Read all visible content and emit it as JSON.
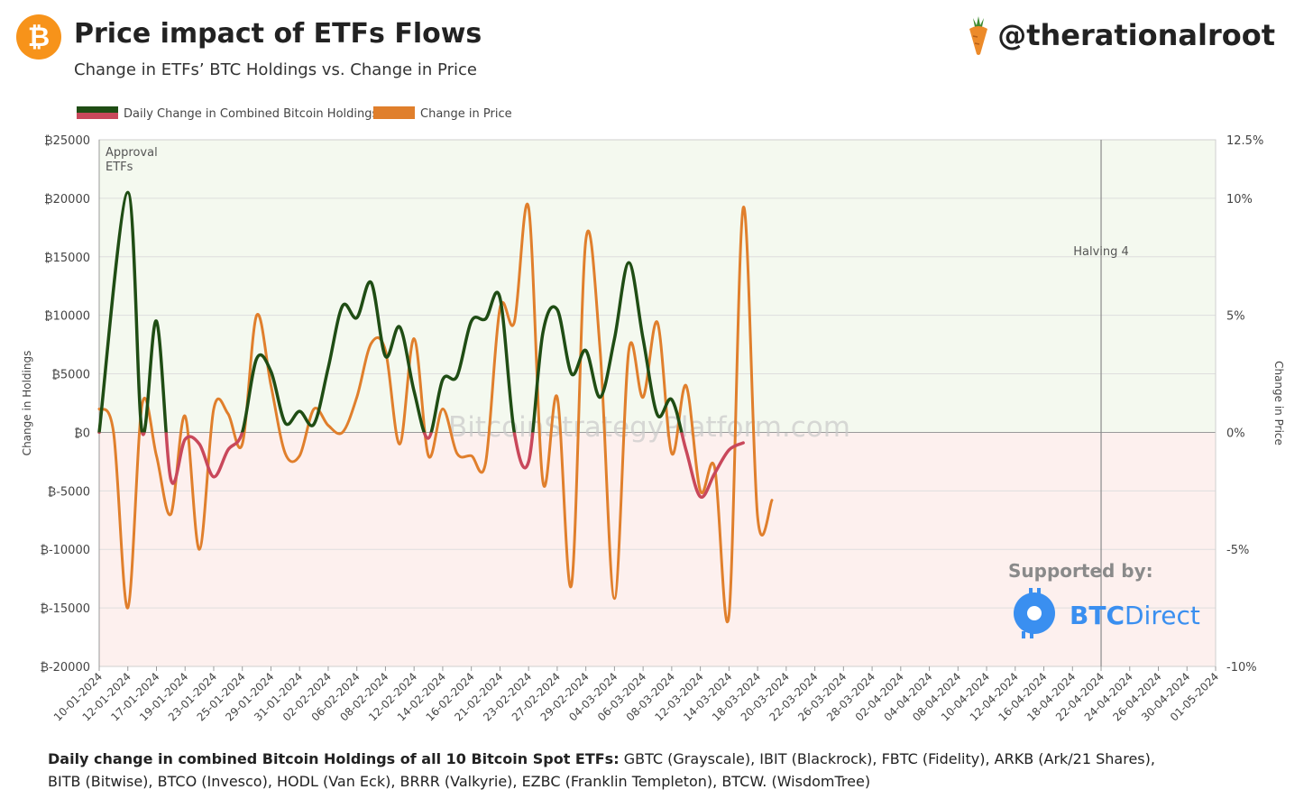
{
  "header": {
    "logo_glyph": "₿",
    "title": "Price impact of ETFs Flows",
    "subtitle": "Change in ETFs’ BTC Holdings vs. Change in Price",
    "handle": "@therationalroot"
  },
  "footer": {
    "lead": "Daily change in combined Bitcoin Holdings of all 10 Bitcoin Spot ETFs:",
    "etfs_line1": " GBTC (Grayscale), IBIT (Blackrock), FBTC (Fidelity), ARKB (Ark/21 Shares),",
    "etfs_line2": "BITB (Bitwise), BTCO (Invesco), HODL (Van Eck), BRRR (Valkyrie), EZBC (Franklin Templeton), BTCW. (WisdomTree)"
  },
  "sponsor": {
    "label": "Supported by:",
    "brand_bold": "BTC",
    "brand_light": "Direct"
  },
  "watermark": "BitcoinStrategyPlatform.com",
  "colors": {
    "holdings_positive": "#1f4d14",
    "holdings_negative": "#c9485b",
    "price": "#e07f2c",
    "positive_zone": "#f4f9ef",
    "negative_zone": "#fdf0ee",
    "brand": "#3a8ff0"
  },
  "chart_data": {
    "type": "line",
    "legend": [
      "Daily Change in Combined Bitcoin Holdings",
      "Change in Price"
    ],
    "ylabel_left": "Change in Holdings",
    "ylabel_right": "Change in Price",
    "ylim_left": [
      -20000,
      25000
    ],
    "ylim_right": [
      -10,
      12.5
    ],
    "left_ticks": [
      "₿25000",
      "₿20000",
      "₿15000",
      "₿10000",
      "₿5000",
      "₿0",
      "₿-5000",
      "₿-10000",
      "₿-15000",
      "₿-20000"
    ],
    "right_ticks": [
      "12.5%",
      "10%",
      "5%",
      "0%",
      "-5%",
      "-10%"
    ],
    "x_labels": [
      "10-01-2024",
      "12-01-2024",
      "17-01-2024",
      "19-01-2024",
      "23-01-2024",
      "25-01-2024",
      "29-01-2024",
      "31-01-2024",
      "02-02-2024",
      "06-02-2024",
      "08-02-2024",
      "12-02-2024",
      "14-02-2024",
      "16-02-2024",
      "21-02-2024",
      "23-02-2024",
      "27-02-2024",
      "29-02-2024",
      "04-03-2024",
      "06-03-2024",
      "08-03-2024",
      "12-03-2024",
      "14-03-2024",
      "18-03-2024",
      "20-03-2024",
      "22-03-2024",
      "26-03-2024",
      "28-03-2024",
      "02-04-2024",
      "04-04-2024",
      "08-04-2024",
      "10-04-2024",
      "12-04-2024",
      "16-04-2024",
      "18-04-2024",
      "22-04-2024",
      "24-04-2024",
      "26-04-2024",
      "30-04-2024",
      "01-05-2024"
    ],
    "annotations": [
      {
        "label": "Approval ETFs",
        "lines": [
          "Approval",
          "ETFs"
        ],
        "x_index": 0
      },
      {
        "label": "Halving 4",
        "x_index": 35
      }
    ],
    "series": [
      {
        "name": "Daily Change in Combined Bitcoin Holdings",
        "axis": "left",
        "x": [
          0,
          1,
          1.5,
          2,
          2.5,
          3,
          3.5,
          4,
          4.5,
          5,
          5.5,
          6,
          6.5,
          7,
          7.5,
          8,
          8.5,
          9,
          9.5,
          10,
          10.5,
          11,
          11.5,
          12,
          12.5,
          13,
          13.5,
          14,
          14.5,
          15,
          15.5,
          16,
          16.5,
          17,
          17.5,
          18,
          18.5,
          19,
          19.5,
          20,
          20.5,
          21,
          21.5,
          22,
          22.5,
          23,
          23.5,
          24,
          24.5,
          25,
          25.5
        ],
        "values": [
          0,
          20500,
          0,
          9500,
          -4000,
          -600,
          -1000,
          -3800,
          -1500,
          0,
          6300,
          5200,
          800,
          1800,
          700,
          5500,
          10800,
          9800,
          12800,
          6500,
          9000,
          3500,
          -500,
          4500,
          4800,
          9500,
          9700,
          11500,
          0,
          -2500,
          8500,
          10500,
          5000,
          7000,
          3000,
          8000,
          14500,
          8000,
          1500,
          2800,
          -1500,
          -5500,
          -3500,
          -1500,
          -900,
          null,
          null,
          null,
          null,
          null,
          null
        ]
      },
      {
        "name": "Change in Price",
        "axis": "right",
        "x": [
          0,
          0.5,
          1,
          1.5,
          2,
          2.5,
          3,
          3.5,
          4,
          4.5,
          5,
          5.5,
          6,
          6.5,
          7,
          7.5,
          8,
          8.5,
          9,
          9.5,
          10,
          10.5,
          11,
          11.5,
          12,
          12.5,
          13,
          13.5,
          14,
          14.5,
          15,
          15.5,
          16,
          16.5,
          17,
          17.5,
          18,
          18.5,
          19,
          19.5,
          20,
          20.5,
          21,
          21.5,
          22,
          22.5,
          23,
          23.5,
          24,
          24.5,
          25,
          25.5
        ],
        "values": [
          1,
          0,
          -7.5,
          1.2,
          -1,
          -3.5,
          0.7,
          -5,
          1,
          0.8,
          -0.5,
          5,
          2,
          -0.9,
          -1,
          1,
          0.3,
          0,
          1.5,
          3.8,
          3.5,
          -0.5,
          4,
          -1,
          1,
          -0.9,
          -1,
          -1.3,
          5.3,
          4.7,
          9.6,
          -2.1,
          1.5,
          -6.5,
          8.2,
          3.5,
          -7.1,
          3.5,
          1.5,
          4.7,
          -0.9,
          2,
          -2.5,
          -1.5,
          -7.8,
          9.6,
          -3.6,
          -2.9,
          null,
          null,
          null,
          null
        ]
      }
    ]
  }
}
